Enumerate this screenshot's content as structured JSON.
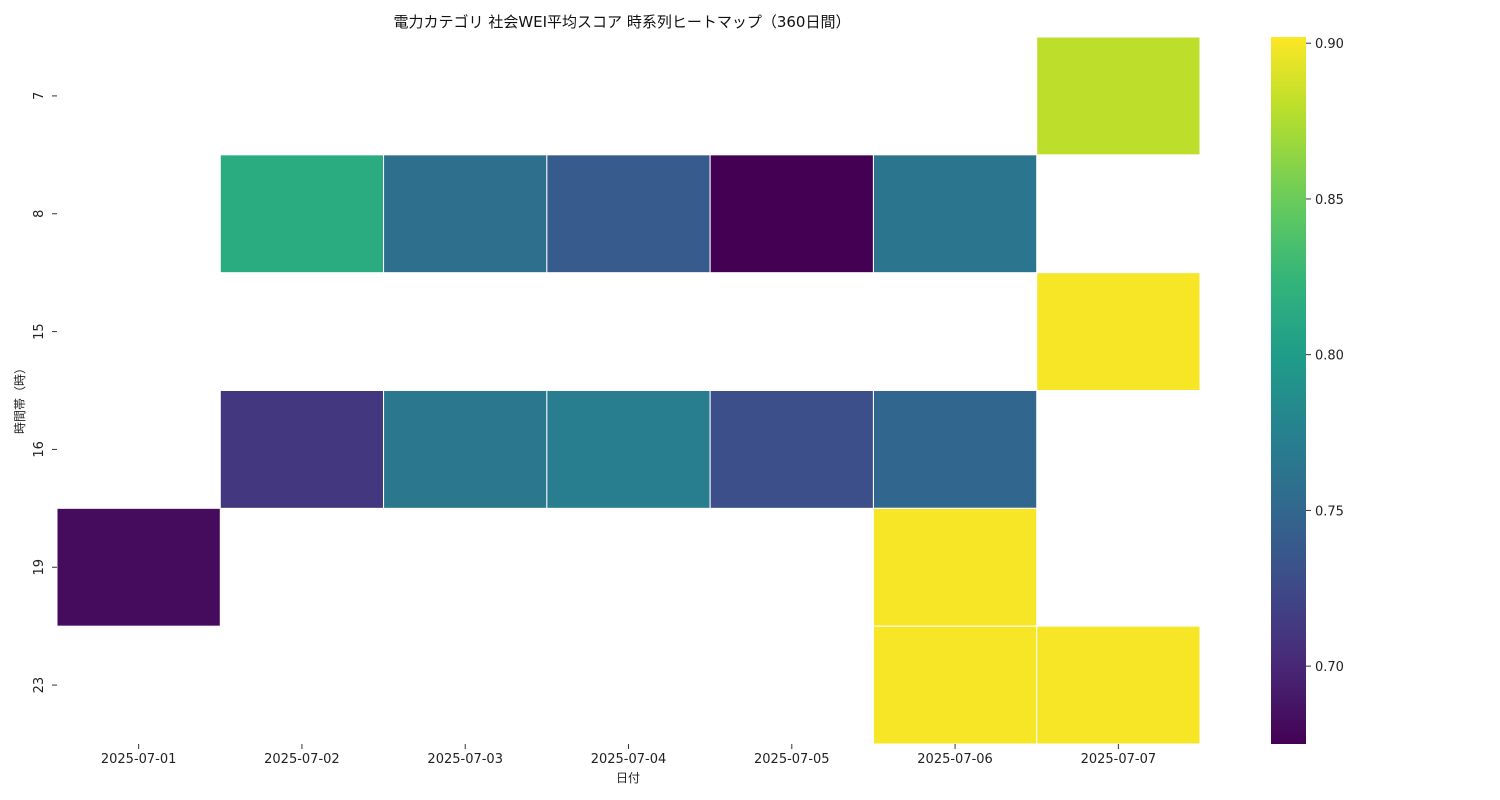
{
  "chart_data": {
    "type": "heatmap",
    "title": "電力カテゴリ 社会WEI平均スコア 時系列ヒートマップ（360日間）",
    "xlabel": "日付",
    "ylabel": "時間帯（時）",
    "x_categories": [
      "2025-07-01",
      "2025-07-02",
      "2025-07-03",
      "2025-07-04",
      "2025-07-05",
      "2025-07-06",
      "2025-07-07"
    ],
    "y_categories": [
      "7",
      "8",
      "15",
      "16",
      "19",
      "23"
    ],
    "values": [
      [
        null,
        null,
        null,
        null,
        null,
        null,
        0.88
      ],
      [
        null,
        0.815,
        0.757,
        0.74,
        0.675,
        0.763,
        null
      ],
      [
        null,
        null,
        null,
        null,
        null,
        null,
        0.9
      ],
      [
        null,
        0.712,
        0.765,
        0.772,
        0.73,
        0.75,
        null
      ],
      [
        0.682,
        null,
        null,
        null,
        null,
        0.9,
        null
      ],
      [
        null,
        null,
        null,
        null,
        null,
        0.9,
        0.9
      ]
    ],
    "colormap": "viridis",
    "vmin": 0.675,
    "vmax": 0.902,
    "colorbar_ticks": [
      0.7,
      0.75,
      0.8,
      0.85,
      0.9
    ],
    "colorbar_tick_labels": [
      "0.70",
      "0.75",
      "0.80",
      "0.85",
      "0.90"
    ],
    "grid": false
  }
}
